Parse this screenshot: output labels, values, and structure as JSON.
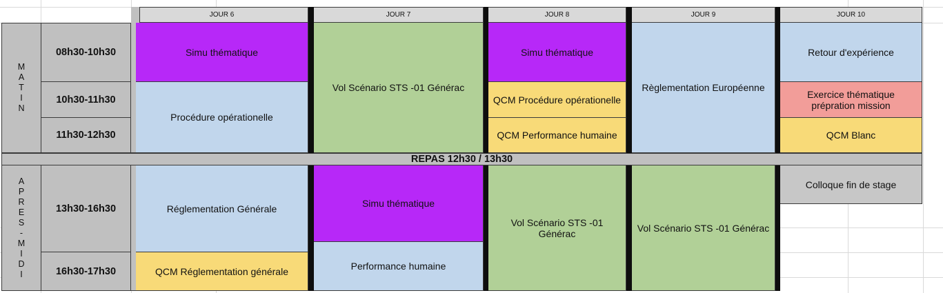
{
  "headers": [
    "JOUR 6",
    "JOUR 7",
    "JOUR 8",
    "JOUR 9",
    "JOUR 10"
  ],
  "periods": {
    "matin_letters": [
      "M",
      "A",
      "T",
      "I",
      "N"
    ],
    "apres_midi_letters": [
      "A",
      "P",
      "R",
      "E",
      "S",
      "-",
      "M",
      "I",
      "D",
      "I"
    ]
  },
  "times": [
    "08h30-10h30",
    "10h30-11h30",
    "11h30-12h30",
    "13h30-16h30",
    "16h30-17h30"
  ],
  "repas": "REPAS 12h30 / 13h30",
  "activities": {
    "j6_simu": "Simu thématique",
    "j6_procedure": "Procédure opérationelle",
    "j6_reglementation": "Réglementation Générale",
    "j6_qcm_reglementation": "QCM Réglementation générale",
    "j7_vol": "Vol Scénario STS -01 Générac",
    "j7_simu": "Simu thématique",
    "j7_performance": "Performance humaine",
    "j8_simu": "Simu thématique",
    "j8_qcm_procedure": "QCM Procédure opérationelle",
    "j8_qcm_performance": "QCM Performance humaine",
    "j8_vol": "Vol Scénario STS -01 Générac",
    "j9_reglementation": "Règlementation Européenne",
    "j9_vol": "Vol Scénario STS -01 Générac",
    "j10_retour": "Retour d'expérience",
    "j10_exercice": "Exercice thématique prépration mission",
    "j10_qcm_blanc": "QCM Blanc",
    "j10_colloque": "Colloque fin de stage"
  },
  "colors": {
    "purple": "#b728f8",
    "green": "#b1d097",
    "blue": "#c1d6ec",
    "yellow": "#f8da78",
    "red": "#f29d99",
    "gray": "#c0c0c0"
  }
}
